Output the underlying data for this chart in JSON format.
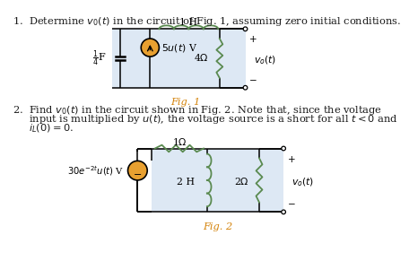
{
  "bg_color": "#ffffff",
  "text_color": "#1a1a1a",
  "fig_label_color": "#d4830a",
  "circuit_bg": "#dde8f4",
  "wire_color": "#000000",
  "source_fill": "#e8a030",
  "problem1_text": "1.  Determine $v_0(t)$ in the circuit of Fig. 1, assuming zero initial conditions.",
  "fig1_label": "Fig. 1",
  "problem2_line1": "2.  Find $v_0(t)$ in the circuit shown in Fig. 2. Note that, since the voltage",
  "problem2_line2": "     input is multiplied by $u(t)$, the voltage source is a short for all $t < 0$ and",
  "problem2_line3": "     $i_L(0) = 0$.",
  "fig2_label": "Fig. 2"
}
